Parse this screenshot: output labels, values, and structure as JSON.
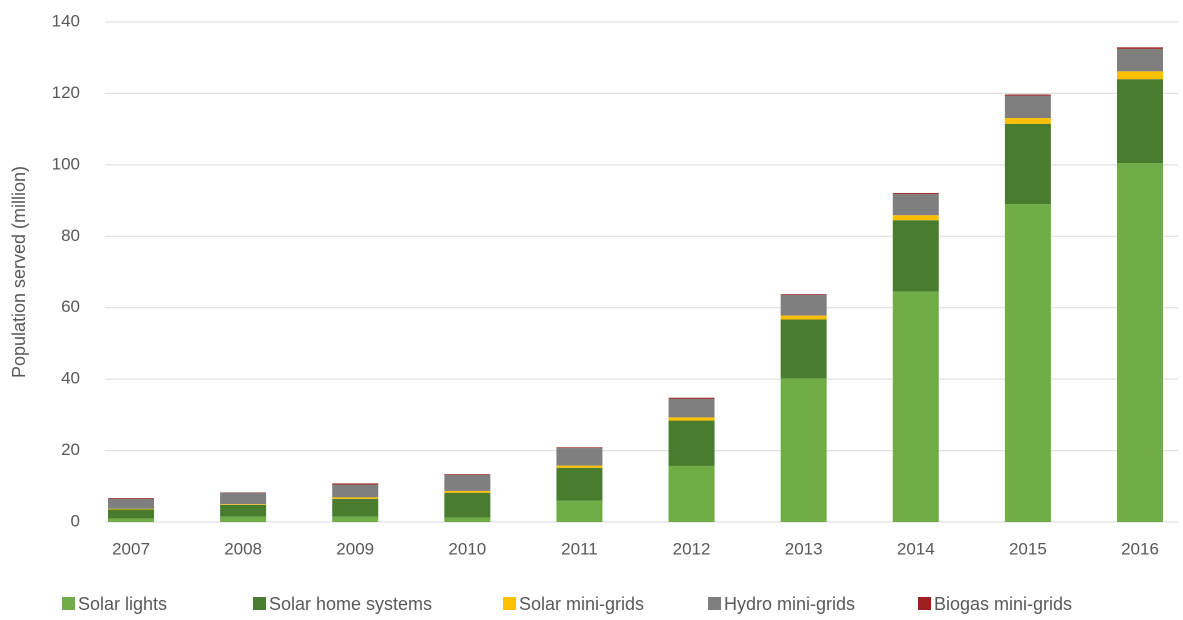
{
  "chart_data": {
    "type": "stacked_bar",
    "y_label": "Population served (million)",
    "categories": [
      "2007",
      "2008",
      "2009",
      "2010",
      "2011",
      "2012",
      "2013",
      "2014",
      "2015",
      "2016"
    ],
    "series": [
      {
        "name": "Solar lights",
        "color": "#70ad47",
        "values": [
          1,
          1.5,
          1.5,
          1.2,
          6,
          15.7,
          40.2,
          64.5,
          89,
          100.5
        ]
      },
      {
        "name": "Solar home systems",
        "color": "#4a7c2f",
        "values": [
          2.5,
          3.3,
          5,
          7,
          9.2,
          12.7,
          16.5,
          20,
          22.5,
          23.5
        ]
      },
      {
        "name": "Solar mini-grids",
        "color": "#ffc000",
        "values": [
          0.2,
          0.2,
          0.4,
          0.5,
          0.6,
          0.9,
          1.1,
          1.4,
          1.6,
          2.2
        ]
      },
      {
        "name": "Hydro mini-grids",
        "color": "#7f7f7f",
        "values": [
          2.8,
          3.2,
          3.6,
          4.5,
          4.9,
          5.2,
          5.8,
          5.9,
          6.3,
          6.3
        ]
      },
      {
        "name": "Biogas mini-grids",
        "color": "#9e1f1f",
        "values": [
          0.2,
          0.1,
          0.3,
          0.2,
          0.2,
          0.3,
          0.2,
          0.3,
          0.3,
          0.4
        ]
      }
    ],
    "ylim": [
      0,
      140
    ],
    "yticks": [
      0,
      20,
      40,
      60,
      80,
      100,
      120,
      140
    ],
    "grid": true,
    "legend": "bottom"
  }
}
